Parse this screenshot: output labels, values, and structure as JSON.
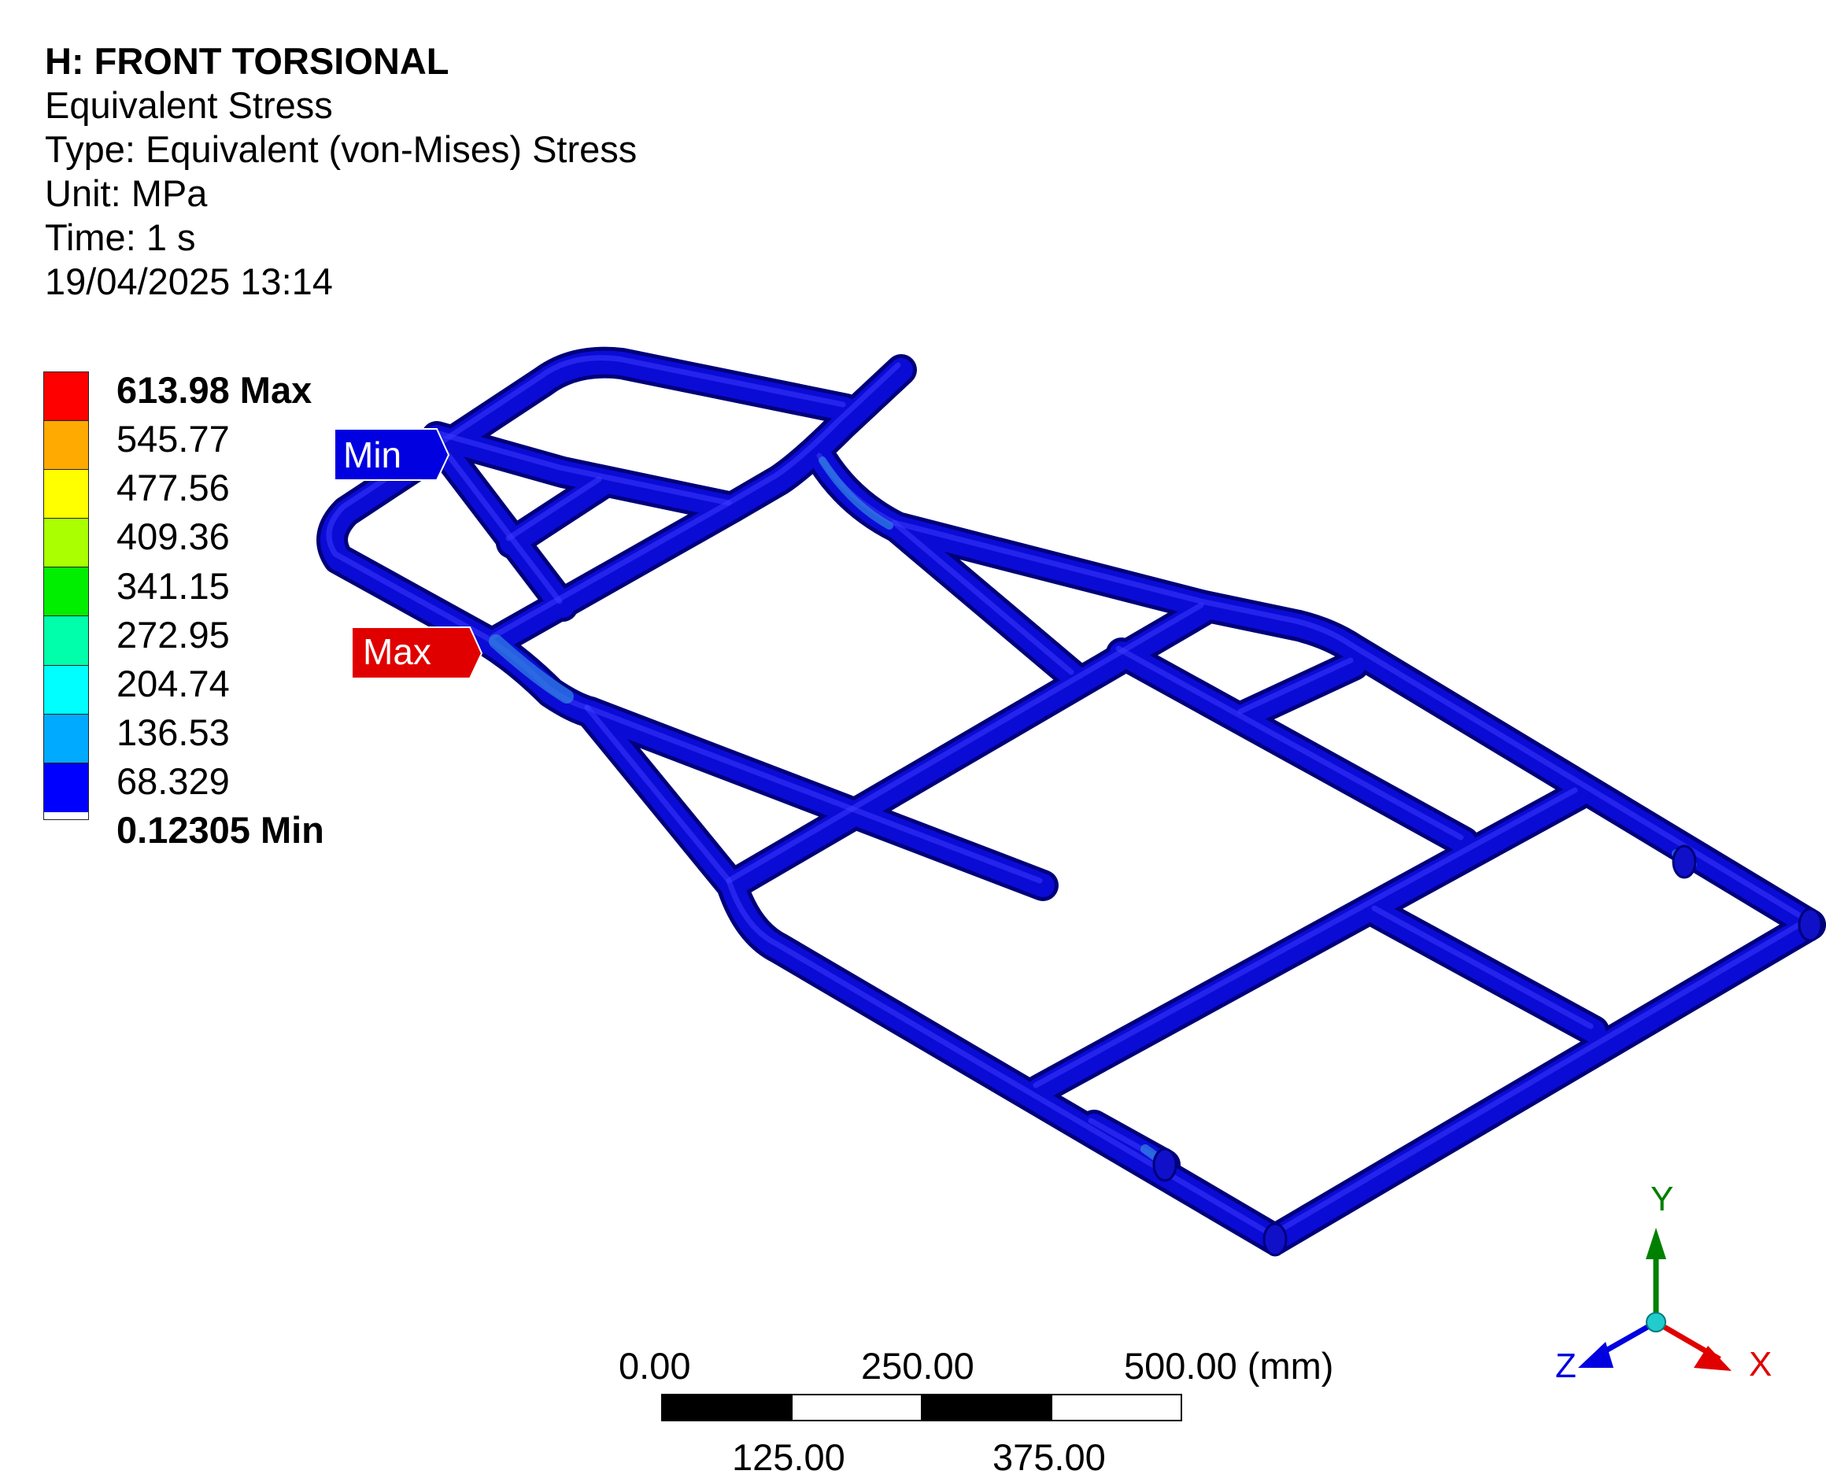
{
  "header": {
    "title": "H: FRONT TORSIONAL",
    "result": "Equivalent Stress",
    "type": "Type: Equivalent (von-Mises) Stress",
    "unit": "Unit: MPa",
    "time": "Time: 1 s",
    "timestamp": "19/04/2025 13:14"
  },
  "legend": {
    "labels": [
      "613.98 Max",
      "545.77",
      "477.56",
      "409.36",
      "341.15",
      "272.95",
      "204.74",
      "136.53",
      "68.329",
      "0.12305 Min"
    ],
    "colors": [
      "#ff0000",
      "#ffaa00",
      "#ffff00",
      "#aaff00",
      "#00ee00",
      "#00ffaa",
      "#00ffff",
      "#00aaff",
      "#0000ff"
    ]
  },
  "probes": {
    "min": {
      "label": "Min",
      "color": "#0000e0"
    },
    "max": {
      "label": "Max",
      "color": "#e00000"
    }
  },
  "scale_bar": {
    "top_labels": [
      "0.00",
      "250.00",
      "500.00 (mm)"
    ],
    "bottom_labels": [
      "125.00",
      "375.00"
    ]
  },
  "triad": {
    "x": {
      "label": "X",
      "color": "#e00000"
    },
    "y": {
      "label": "Y",
      "color": "#008000"
    },
    "z": {
      "label": "Z",
      "color": "#0000e0"
    }
  },
  "model": {
    "tube_color": "#0b0bd6",
    "hotspot_color": "#2f7fe0"
  }
}
